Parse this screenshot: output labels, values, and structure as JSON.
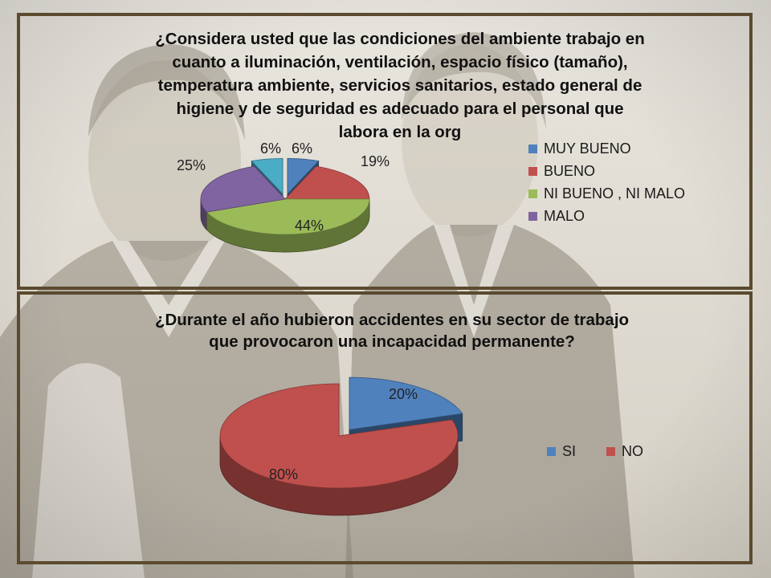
{
  "chart_data": [
    {
      "type": "pie",
      "title": "¿Considera usted que las condiciones del ambiente trabajo en cuanto a iluminación, ventilación, espacio físico (tamaño), temperatura ambiente, servicios sanitarios, estado general de higiene y de seguridad es adecuado para el personal que labora en la org",
      "title_lines": [
        "¿Considera usted que las condiciones del ambiente trabajo en",
        "cuanto a iluminación, ventilación, espacio físico (tamaño),",
        "temperatura ambiente, servicios sanitarios, estado general de",
        "higiene y de seguridad es adecuado para el personal que",
        "labora en la org"
      ],
      "three_d": true,
      "legend_position": "right",
      "slices": [
        {
          "label": "MUY BUENO",
          "value": 6,
          "display": "6%",
          "color": "#4f81bd",
          "exploded": true
        },
        {
          "label": "BUENO",
          "value": 19,
          "display": "19%",
          "color": "#c0504d",
          "exploded": false
        },
        {
          "label": "NI BUENO , NI MALO",
          "value": 44,
          "display": "44%",
          "color": "#9bbb59",
          "exploded": false
        },
        {
          "label": "MALO",
          "value": 25,
          "display": "25%",
          "color": "#8064a2",
          "exploded": false
        },
        {
          "label": "",
          "value": 6,
          "display": "6%",
          "color": "#4bacc6",
          "exploded": true
        }
      ]
    },
    {
      "type": "pie",
      "title": "¿Durante el año hubieron accidentes en su sector de trabajo que provocaron una incapacidad permanente?",
      "title_lines": [
        "¿Durante el año hubieron accidentes en su sector de trabajo",
        "que provocaron una incapacidad permanente?"
      ],
      "three_d": true,
      "legend_position": "right",
      "slices": [
        {
          "label": "SI",
          "value": 20,
          "display": "20%",
          "color": "#4f81bd",
          "exploded": true
        },
        {
          "label": "NO",
          "value": 80,
          "display": "80%",
          "color": "#c0504d",
          "exploded": false
        }
      ]
    }
  ]
}
